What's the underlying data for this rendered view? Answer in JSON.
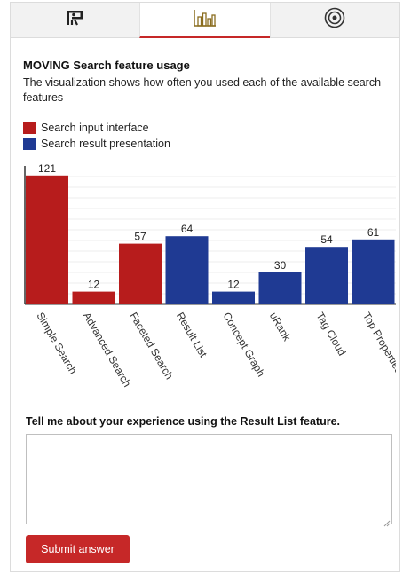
{
  "tabs": [
    {
      "icon": "presentation-icon",
      "active": false
    },
    {
      "icon": "bar-chart-icon",
      "active": true
    },
    {
      "icon": "target-icon",
      "active": false
    }
  ],
  "visualization": {
    "title": "MOVING Search feature usage",
    "description": "The visualization shows how often you used each of the available search features"
  },
  "legend": [
    {
      "label": "Search input interface",
      "color": "#b71c1c"
    },
    {
      "label": "Search result presentation",
      "color": "#1f3a93"
    }
  ],
  "chart_data": {
    "type": "bar",
    "categories": [
      "Simple Search",
      "Advanced Search",
      "Faceted Search",
      "Result List",
      "Concept Graph",
      "uRank",
      "Tag Cloud",
      "Top Properties"
    ],
    "values": [
      121,
      12,
      57,
      64,
      12,
      30,
      54,
      61
    ],
    "groups": [
      "input",
      "input",
      "input",
      "result",
      "result",
      "result",
      "result",
      "result"
    ],
    "colors": {
      "input": "#b71c1c",
      "result": "#1f3a93"
    },
    "ylim": [
      0,
      130
    ],
    "grid": true,
    "legend_position": "top-left"
  },
  "question": {
    "label": "Tell me about your experience using the Result List feature.",
    "answer_value": "",
    "submit_label": "Submit answer"
  }
}
